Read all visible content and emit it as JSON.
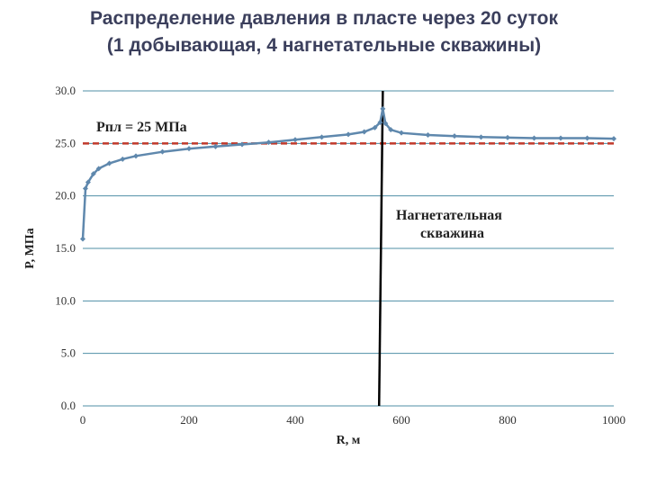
{
  "title": {
    "line1": "Распределение давления в пласте через 20 суток",
    "line2": "(1 добывающая, 4 нагнетательные скважины)"
  },
  "colors": {
    "series": "#5f88ad",
    "reference": "#c0392b",
    "grid": "#4f8fa6",
    "well": "#000000"
  },
  "chart_data": {
    "type": "line",
    "xlabel": "R, м",
    "ylabel": "P, МПа",
    "xlim": [
      0,
      1000
    ],
    "ylim": [
      0,
      30
    ],
    "xticks": [
      0,
      200,
      400,
      600,
      800,
      1000
    ],
    "yticks": [
      0.0,
      5.0,
      10.0,
      15.0,
      20.0,
      25.0,
      30.0
    ],
    "ytick_labels": [
      "0.0",
      "5.0",
      "10.0",
      "15.0",
      "20.0",
      "25.0",
      "30.0"
    ],
    "grid": "horizontal",
    "series": [
      {
        "marker": "diamond",
        "x": [
          0,
          5,
          10,
          20,
          30,
          50,
          75,
          100,
          150,
          200,
          250,
          300,
          350,
          400,
          450,
          500,
          530,
          550,
          560,
          565,
          570,
          580,
          600,
          650,
          700,
          750,
          800,
          850,
          900,
          950,
          1000
        ],
        "y": [
          15.9,
          20.7,
          21.3,
          22.1,
          22.6,
          23.1,
          23.5,
          23.8,
          24.2,
          24.5,
          24.7,
          24.9,
          25.1,
          25.35,
          25.6,
          25.85,
          26.1,
          26.5,
          27.0,
          28.3,
          26.9,
          26.3,
          26.0,
          25.8,
          25.7,
          25.6,
          25.55,
          25.5,
          25.5,
          25.5,
          25.45
        ]
      }
    ],
    "reference_line": {
      "y": 25,
      "label": "Рпл = 25 МПа"
    },
    "injection_well": {
      "x_top": 565,
      "x_bottom": 558,
      "label_line1": "Нагнетательная",
      "label_line2": "скважина"
    }
  }
}
